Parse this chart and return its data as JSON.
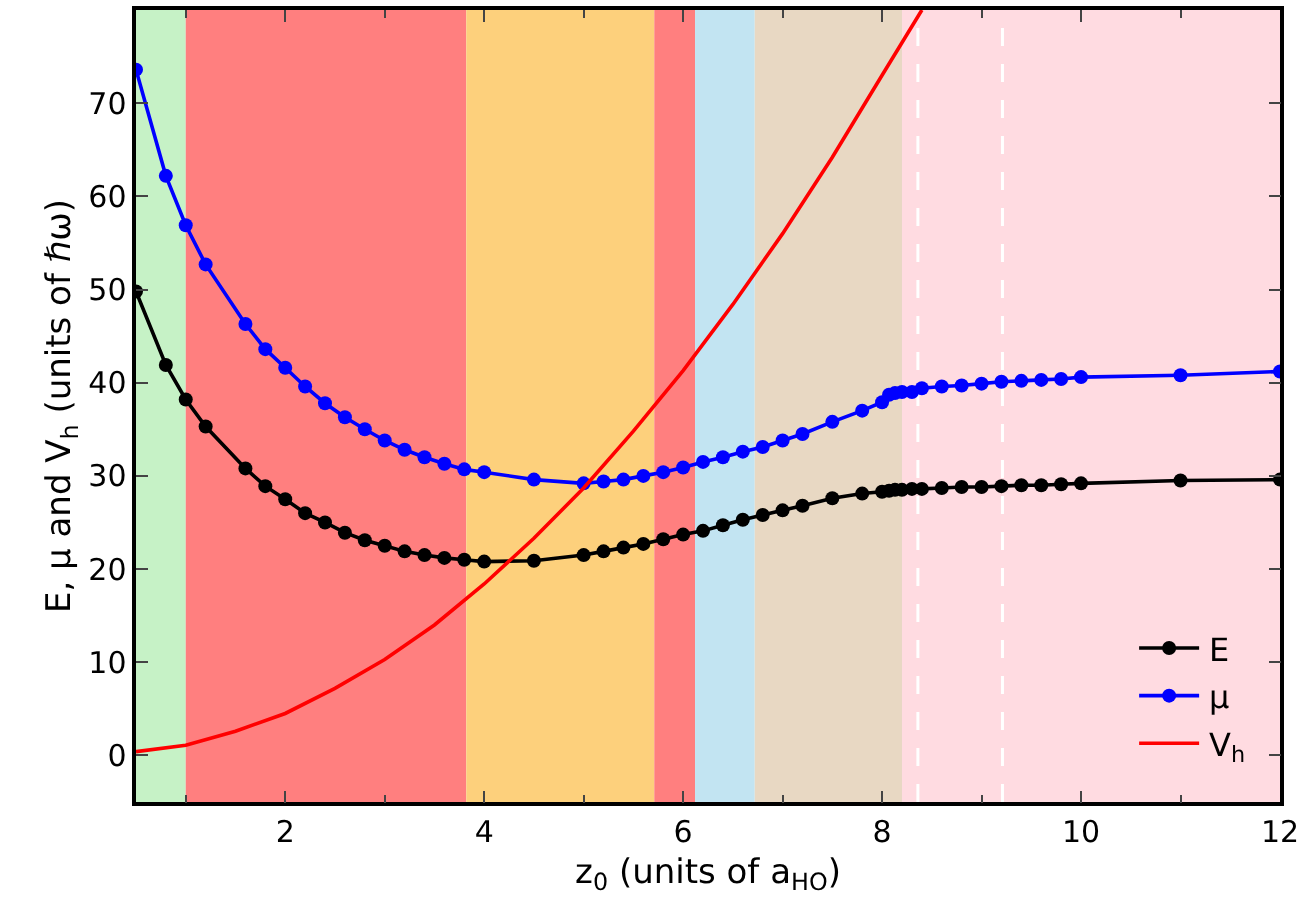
{
  "chart_data": {
    "type": "line",
    "xlabel": "z$_{0}$ (units of a$_{HO}$)",
    "ylabel": "E, μ and V$_{h}$ (units of ℏω)",
    "x": [
      0.5,
      0.8,
      1.0,
      1.2,
      1.6,
      1.8,
      2.0,
      2.2,
      2.4,
      2.6,
      2.8,
      3.0,
      3.2,
      3.4,
      3.6,
      3.8,
      4.0,
      4.5,
      5.0,
      5.2,
      5.4,
      5.6,
      5.8,
      6.0,
      6.2,
      6.4,
      6.6,
      6.8,
      7.0,
      7.2,
      7.5,
      7.8,
      8.0,
      8.07,
      8.13,
      8.2,
      8.3,
      8.4,
      8.6,
      8.8,
      9.0,
      9.2,
      9.4,
      9.6,
      9.8,
      10,
      11,
      12
    ],
    "series": [
      {
        "name": "E",
        "color": "#000000",
        "marker": "circle",
        "values": [
          49.8,
          41.9,
          38.2,
          35.3,
          30.8,
          28.9,
          27.5,
          26.0,
          25.0,
          23.9,
          23.1,
          22.5,
          21.9,
          21.5,
          21.2,
          21.0,
          20.8,
          20.9,
          21.5,
          21.9,
          22.3,
          22.7,
          23.2,
          23.7,
          24.1,
          24.7,
          25.3,
          25.8,
          26.3,
          26.8,
          27.6,
          28.1,
          28.3,
          28.4,
          28.5,
          28.5,
          28.6,
          28.6,
          28.7,
          28.8,
          28.8,
          28.9,
          29.0,
          29.0,
          29.1,
          29.2,
          29.5,
          29.6
        ]
      },
      {
        "name": "μ",
        "color": "#0000ff",
        "marker": "circle",
        "values": [
          73.6,
          62.2,
          56.9,
          52.7,
          46.3,
          43.6,
          41.6,
          39.6,
          37.8,
          36.3,
          35.0,
          33.8,
          32.8,
          32.0,
          31.3,
          30.7,
          30.4,
          29.6,
          29.2,
          29.4,
          29.6,
          30.0,
          30.4,
          30.9,
          31.5,
          32.0,
          32.6,
          33.1,
          33.8,
          34.5,
          35.8,
          37.0,
          37.9,
          38.7,
          38.9,
          39.0,
          39.0,
          39.4,
          39.6,
          39.7,
          39.9,
          40.1,
          40.2,
          40.3,
          40.4,
          40.6,
          40.8,
          41.2
        ]
      },
      {
        "name": "V$_{h}$",
        "color": "#ff0000",
        "marker": "none",
        "x": [
          0.5,
          1,
          1.5,
          2,
          2.5,
          3,
          3.5,
          4,
          4.5,
          5,
          5.5,
          6,
          6.5,
          7,
          7.5,
          8,
          8.4
        ],
        "values": [
          0.4,
          1.1,
          2.6,
          4.5,
          7.2,
          10.3,
          14,
          18.4,
          23.3,
          28.7,
          34.8,
          41.3,
          48.4,
          56,
          64.2,
          73,
          80
        ]
      }
    ],
    "xlim": [
      0.5,
      12
    ],
    "xticks": [
      2,
      4,
      6,
      8,
      10,
      12
    ],
    "ylim": [
      -5,
      80
    ],
    "yticks": [
      0,
      10,
      20,
      30,
      40,
      50,
      60,
      70
    ],
    "bands": [
      {
        "axis": "x",
        "from": 0.5,
        "to": 1.0,
        "color": "#c6f2c6"
      },
      {
        "axis": "x",
        "from": 1.0,
        "to": 3.82,
        "color": "#ff7f7f"
      },
      {
        "axis": "x",
        "from": 3.82,
        "to": 5.71,
        "color": "#fdd07c"
      },
      {
        "axis": "x",
        "from": 5.71,
        "to": 6.12,
        "color": "#ff7f7f"
      },
      {
        "axis": "x",
        "from": 6.12,
        "to": 6.72,
        "color": "#c2e4f2"
      },
      {
        "axis": "x",
        "from": 6.72,
        "to": 8.2,
        "color": "#e8d8c3"
      },
      {
        "axis": "x",
        "from": 8.2,
        "to": 12,
        "color": "#ffdbe1"
      }
    ],
    "ref_lines": [
      {
        "axis": "x",
        "value": 8.36,
        "color": "#ffffff",
        "line_style": "dashed"
      },
      {
        "axis": "x",
        "value": 9.21,
        "color": "#ffffff",
        "line_style": "dashed"
      }
    ],
    "grid": false,
    "legend": "bottom right"
  }
}
